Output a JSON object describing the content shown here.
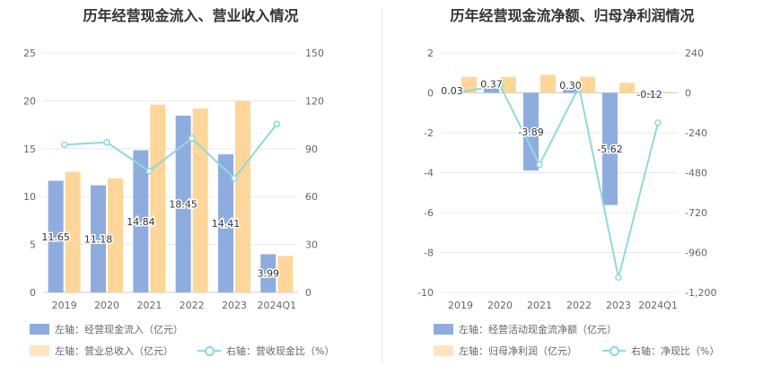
{
  "colors": {
    "blue": "#8eadde",
    "orange": "#ffd699",
    "cyan": "#8fd9dc",
    "grid": "#e8e8e8"
  },
  "chart_data": [
    {
      "type": "bar",
      "title": "历年经营现金流入、营业收入情况",
      "categories": [
        "2019",
        "2020",
        "2021",
        "2022",
        "2023",
        "2024Q1"
      ],
      "left_ylim": [
        0,
        25
      ],
      "left_ticks": [
        "0",
        "5",
        "10",
        "15",
        "20",
        "25"
      ],
      "right_ylim": [
        0,
        150
      ],
      "right_ticks": [
        "0",
        "30",
        "60",
        "90",
        "120",
        "150"
      ],
      "grid": true,
      "legend_position": "bottom",
      "series": [
        {
          "name": "左轴：经营现金流入（亿元）",
          "axis": "left",
          "kind": "bar",
          "values": [
            11.65,
            11.18,
            14.84,
            18.45,
            14.41,
            3.99
          ],
          "labels": [
            "11.65",
            "11.18",
            "14.84",
            "18.45",
            "14.41",
            "3.99"
          ]
        },
        {
          "name": "左轴：营业总收入（亿元）",
          "axis": "left",
          "kind": "bar",
          "values": [
            12.6,
            11.9,
            19.6,
            19.2,
            20.0,
            3.8
          ]
        },
        {
          "name": "右轴：营收现金比（%）",
          "axis": "right",
          "kind": "line",
          "values": [
            92.5,
            94,
            76,
            96.5,
            71.5,
            105.5
          ]
        }
      ]
    },
    {
      "type": "bar",
      "title": "历年经营现金流净额、归母净利润情况",
      "categories": [
        "2019",
        "2020",
        "2021",
        "2022",
        "2023",
        "2024Q1"
      ],
      "left_ylim": [
        -10,
        2
      ],
      "left_ticks": [
        "-10",
        "-8",
        "-6",
        "-4",
        "-2",
        "0",
        "2"
      ],
      "right_ylim": [
        -1200,
        240
      ],
      "right_ticks": [
        "-1,200",
        "-960",
        "-720",
        "-480",
        "-240",
        "0",
        "240"
      ],
      "grid": true,
      "legend_position": "bottom",
      "series": [
        {
          "name": "左轴：经营活动现金流净额（亿元）",
          "axis": "left",
          "kind": "bar",
          "values": [
            0.03,
            0.37,
            -3.89,
            0.3,
            -5.62,
            -0.12
          ],
          "labels": [
            "0.03",
            "0.37",
            "-3.89",
            "0.30",
            "-5.62",
            "-0.12"
          ]
        },
        {
          "name": "左轴：归母净利润（亿元）",
          "axis": "left",
          "kind": "bar",
          "values": [
            0.8,
            0.8,
            0.9,
            0.8,
            0.5,
            0.05
          ]
        },
        {
          "name": "右轴：净现比（%）",
          "axis": "right",
          "kind": "line",
          "values": [
            4,
            46,
            -432,
            37,
            -1110,
            -180
          ]
        }
      ]
    }
  ]
}
